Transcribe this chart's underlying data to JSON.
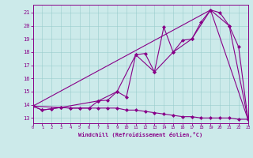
{
  "bg_color": "#cceaea",
  "line_color": "#880088",
  "xlim": [
    0,
    23
  ],
  "ylim": [
    12.6,
    21.6
  ],
  "yticks": [
    13,
    14,
    15,
    16,
    17,
    18,
    19,
    20,
    21
  ],
  "xticks": [
    0,
    1,
    2,
    3,
    4,
    5,
    6,
    7,
    8,
    9,
    10,
    11,
    12,
    13,
    14,
    15,
    16,
    17,
    18,
    19,
    20,
    21,
    22,
    23
  ],
  "xlabel": "Windchill (Refroidissement éolien,°C)",
  "series1": [
    [
      0,
      13.9
    ],
    [
      1,
      13.6
    ],
    [
      2,
      13.7
    ],
    [
      3,
      13.8
    ],
    [
      4,
      13.75
    ],
    [
      5,
      13.75
    ],
    [
      6,
      13.75
    ],
    [
      7,
      13.75
    ],
    [
      8,
      13.75
    ],
    [
      9,
      13.75
    ],
    [
      10,
      13.6
    ],
    [
      11,
      13.6
    ],
    [
      12,
      13.5
    ],
    [
      13,
      13.4
    ],
    [
      14,
      13.3
    ],
    [
      15,
      13.2
    ],
    [
      16,
      13.1
    ],
    [
      17,
      13.1
    ],
    [
      18,
      13.0
    ],
    [
      19,
      13.0
    ],
    [
      20,
      13.0
    ],
    [
      21,
      13.0
    ],
    [
      22,
      12.9
    ],
    [
      23,
      12.9
    ]
  ],
  "series2": [
    [
      0,
      13.9
    ],
    [
      1,
      13.6
    ],
    [
      2,
      13.7
    ],
    [
      3,
      13.8
    ],
    [
      4,
      13.75
    ],
    [
      5,
      13.75
    ],
    [
      6,
      13.75
    ],
    [
      7,
      14.3
    ],
    [
      8,
      14.35
    ],
    [
      9,
      15.0
    ],
    [
      10,
      14.6
    ],
    [
      11,
      17.8
    ],
    [
      12,
      17.9
    ],
    [
      13,
      16.5
    ],
    [
      14,
      19.9
    ],
    [
      15,
      18.0
    ],
    [
      16,
      18.9
    ],
    [
      17,
      19.0
    ],
    [
      18,
      20.3
    ],
    [
      19,
      21.2
    ],
    [
      20,
      21.0
    ],
    [
      21,
      20.0
    ],
    [
      22,
      18.4
    ],
    [
      23,
      12.9
    ]
  ],
  "series3": [
    [
      0,
      13.9
    ],
    [
      3,
      13.8
    ],
    [
      7,
      14.3
    ],
    [
      9,
      15.0
    ],
    [
      11,
      17.8
    ],
    [
      13,
      16.5
    ],
    [
      15,
      18.0
    ],
    [
      17,
      19.0
    ],
    [
      19,
      21.2
    ],
    [
      21,
      20.0
    ],
    [
      23,
      12.9
    ]
  ],
  "series4": [
    [
      0,
      13.9
    ],
    [
      19,
      21.2
    ],
    [
      23,
      12.9
    ]
  ]
}
